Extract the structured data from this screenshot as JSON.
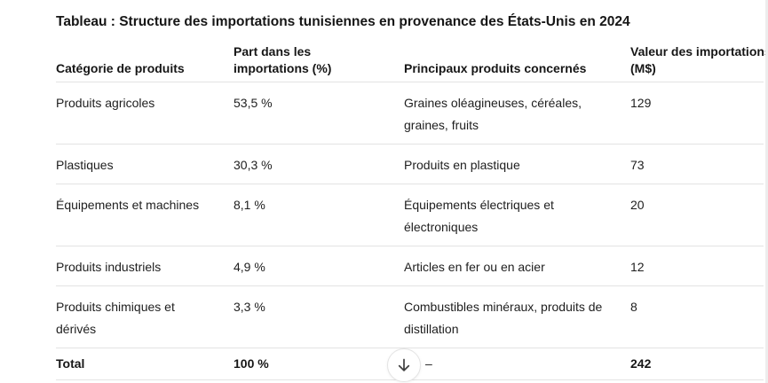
{
  "title": "Tableau : Structure des importations tunisiennes en provenance des États-Unis en 2024",
  "table": {
    "columns": [
      {
        "lines": [
          "Catégorie de produits"
        ]
      },
      {
        "lines": [
          "Part dans les",
          "importations (%)"
        ]
      },
      {
        "lines": [
          "Principaux produits concernés"
        ]
      },
      {
        "lines": [
          "Valeur des importations",
          "(M$)"
        ]
      }
    ],
    "rows": [
      {
        "categorie": "Produits agricoles",
        "part": "53,5 %",
        "produits": "Graines oléagineuses, céréales, graines, fruits",
        "valeur": "129"
      },
      {
        "categorie": "Plastiques",
        "part": "30,3 %",
        "produits": "Produits en plastique",
        "valeur": "73"
      },
      {
        "categorie": "Équipements et machines",
        "part": "8,1 %",
        "produits": "Équipements électriques et électroniques",
        "valeur": "20"
      },
      {
        "categorie": "Produits industriels",
        "part": "4,9 %",
        "produits": "Articles en fer ou en acier",
        "valeur": "12"
      },
      {
        "categorie": "Produits chimiques et dérivés",
        "part": "3,3 %",
        "produits": "Combustibles minéraux, produits de distillation",
        "valeur": "8"
      }
    ],
    "total_row": {
      "categorie": "Total",
      "part": "100 %",
      "produits": "–",
      "valeur": "242"
    }
  },
  "scroll_button": {
    "icon": "arrow-down-icon"
  },
  "colors": {
    "background": "#ffffff",
    "text": "#1e1e1e",
    "heading_text": "#161616",
    "divider": "#e3e3e3",
    "button_border": "#e4e4e4",
    "arrow": "#3f3f3f",
    "right_edge": "#ededed"
  }
}
